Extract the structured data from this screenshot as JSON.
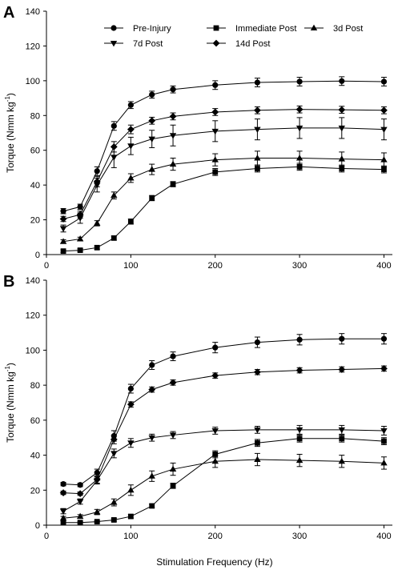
{
  "xlabel": "Stimulation Frequency (Hz)",
  "chart_data": [
    {
      "type": "line",
      "panel": "A",
      "xlabel": "",
      "ylabel": "Torque (Nmm kg-1)",
      "xlim": [
        0,
        410
      ],
      "ylim": [
        0,
        140
      ],
      "xticks": [
        0,
        100,
        200,
        300,
        400
      ],
      "yticks": [
        0,
        20,
        40,
        60,
        80,
        100,
        120,
        140
      ],
      "legend_position": "top",
      "x": [
        20,
        40,
        60,
        80,
        100,
        125,
        150,
        200,
        250,
        300,
        350,
        400
      ],
      "series": [
        {
          "name": "Pre-Injury",
          "marker": "circle",
          "values": [
            25,
            27.5,
            48,
            74,
            86,
            92,
            95,
            97.5,
            99,
            99.5,
            99.8,
            99.5
          ],
          "errors": [
            1.5,
            1.5,
            2.5,
            2.5,
            2,
            2,
            2,
            2.5,
            2.5,
            2.5,
            2.5,
            2.5
          ]
        },
        {
          "name": "Immediate Post",
          "marker": "square",
          "values": [
            2,
            2.5,
            4,
            9.5,
            19,
            32.5,
            40.5,
            47.5,
            49.5,
            50.5,
            49.5,
            49
          ],
          "errors": [
            0.8,
            0.8,
            1,
            1.2,
            1.5,
            1.5,
            1.5,
            2,
            2,
            2,
            2,
            2
          ]
        },
        {
          "name": "3d Post",
          "marker": "triangle-up",
          "values": [
            7.5,
            9,
            18,
            34,
            44,
            49,
            52,
            54.5,
            55.5,
            55.5,
            55,
            54.5
          ],
          "errors": [
            1,
            1,
            1.5,
            2,
            2.5,
            3,
            3.5,
            3.5,
            4,
            4,
            4,
            4
          ]
        },
        {
          "name": "7d Post",
          "marker": "triangle-down",
          "values": [
            15,
            21,
            40,
            56,
            62.5,
            66.5,
            68.5,
            71,
            72,
            72.8,
            72.8,
            72
          ],
          "errors": [
            2,
            3,
            4,
            6,
            5,
            5,
            6,
            6,
            6,
            6,
            6,
            6
          ]
        },
        {
          "name": "14d Post",
          "marker": "diamond",
          "values": [
            20.5,
            23,
            42,
            62,
            72,
            77,
            79.5,
            82,
            83,
            83.5,
            83.3,
            83
          ],
          "errors": [
            1.5,
            2,
            3,
            3,
            2.5,
            2,
            2,
            2,
            2,
            2,
            2,
            2
          ]
        }
      ]
    },
    {
      "type": "line",
      "panel": "B",
      "xlabel": "Stimulation Frequency (Hz)",
      "ylabel": "Torque (Nmm kg-1)",
      "xlim": [
        0,
        410
      ],
      "ylim": [
        0,
        140
      ],
      "xticks": [
        0,
        100,
        200,
        300,
        400
      ],
      "yticks": [
        0,
        20,
        40,
        60,
        80,
        100,
        120,
        140
      ],
      "x": [
        20,
        40,
        60,
        80,
        100,
        125,
        150,
        200,
        250,
        300,
        350,
        400
      ],
      "series": [
        {
          "name": "Pre-Injury",
          "marker": "circle",
          "values": [
            23.5,
            23,
            30,
            51,
            78,
            91.5,
            96.5,
            101.5,
            104.5,
            106,
            106.5,
            106.5
          ],
          "errors": [
            1,
            1,
            2,
            3,
            2.5,
            2.5,
            2.5,
            3,
            3,
            3,
            3,
            3
          ]
        },
        {
          "name": "Immediate Post",
          "marker": "square",
          "values": [
            1.5,
            1.5,
            2,
            3,
            5,
            11,
            22.5,
            40.5,
            47,
            49.5,
            49.5,
            48
          ],
          "errors": [
            0.5,
            0.5,
            0.5,
            0.8,
            1,
            1,
            1.5,
            2,
            2,
            2,
            2,
            2
          ]
        },
        {
          "name": "3d Post",
          "marker": "triangle-up",
          "values": [
            4,
            5,
            7.5,
            13,
            20,
            28,
            32,
            36.5,
            37.5,
            37,
            36.5,
            35.5
          ],
          "errors": [
            1,
            1,
            1.5,
            2,
            3,
            3,
            3.5,
            3.5,
            3.5,
            3.5,
            3.5,
            3.5
          ]
        },
        {
          "name": "7d Post",
          "marker": "triangle-down",
          "values": [
            8,
            13.5,
            25.5,
            41,
            47,
            50,
            51.5,
            54,
            54.5,
            54.5,
            54.5,
            54
          ],
          "errors": [
            1.5,
            1.5,
            2,
            2.5,
            2.5,
            2,
            2,
            2,
            2,
            2.5,
            2.5,
            2.5
          ]
        },
        {
          "name": "14d Post",
          "marker": "diamond",
          "values": [
            18.5,
            18,
            26,
            49,
            69,
            77.5,
            81.5,
            85.5,
            87.5,
            88.5,
            89,
            89.5
          ],
          "errors": [
            1,
            1,
            2,
            2.5,
            1.5,
            1.5,
            1.5,
            1.5,
            1.5,
            1.5,
            1.5,
            1.5
          ]
        }
      ]
    }
  ]
}
